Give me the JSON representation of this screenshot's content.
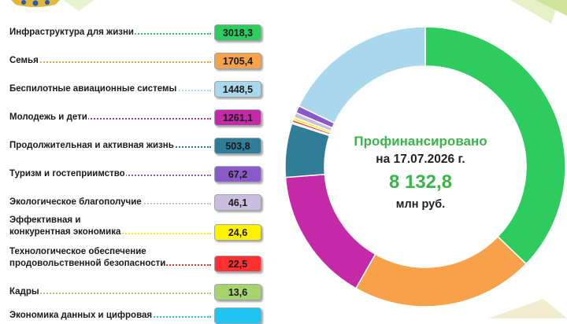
{
  "header": {
    "emblem_name": "coat-of-arms"
  },
  "center": {
    "label": "Профинансировано",
    "date_line": "на 17.07.2026 г.",
    "total": "8 132,8",
    "unit": "млн руб."
  },
  "chart_data": {
    "type": "donut",
    "unit": "млн руб.",
    "total": 8132.8,
    "categories": [
      "Инфраструктура для жизни",
      "Семья",
      "Беспилотные авиационные системы",
      "Молодежь и дети",
      "Продолжительная и активная жизнь",
      "Туризм и гостеприимство",
      "Экологическое благополучие",
      "Эффективная и конкурентная экономика",
      "Технологическое обеспечение продовольственной безопасности",
      "Кадры",
      "Экономика данных и цифровая"
    ],
    "labels_display": [
      [
        "Инфраструктура для жизни"
      ],
      [
        "Семья"
      ],
      [
        "Беспилотные авиационные системы"
      ],
      [
        "Молодежь и дети"
      ],
      [
        "Продолжительная и активная жизнь"
      ],
      [
        "Туризм и гостеприимство"
      ],
      [
        "Экологическое благополучие"
      ],
      [
        "Эффективная и",
        "конкурентная экономика"
      ],
      [
        "Технологическое обеспечение",
        "продовольственной безопасности"
      ],
      [
        "Кадры"
      ],
      [
        "Экономика данных и цифровая"
      ]
    ],
    "values": [
      3018.3,
      1705.4,
      1448.5,
      1261.1,
      503.8,
      67.2,
      46.1,
      24.6,
      22.5,
      13.6,
      null
    ],
    "value_labels": [
      "3018,3",
      "1705,4",
      "1448,5",
      "1261,1",
      "503,8",
      "67,2",
      "46,1",
      "24,6",
      "22,5",
      "13,6",
      ""
    ],
    "colors": [
      "#2ecc5e",
      "#f7a14a",
      "#a9d8ec",
      "#c42aa8",
      "#2f7d96",
      "#8a5ac8",
      "#c9bedf",
      "#fff200",
      "#ff3030",
      "#a6d36c",
      "#20c4f0"
    ],
    "slice_order": [
      0,
      1,
      3,
      4,
      9,
      8,
      7,
      6,
      5,
      2
    ],
    "start_angle_deg": 90
  }
}
